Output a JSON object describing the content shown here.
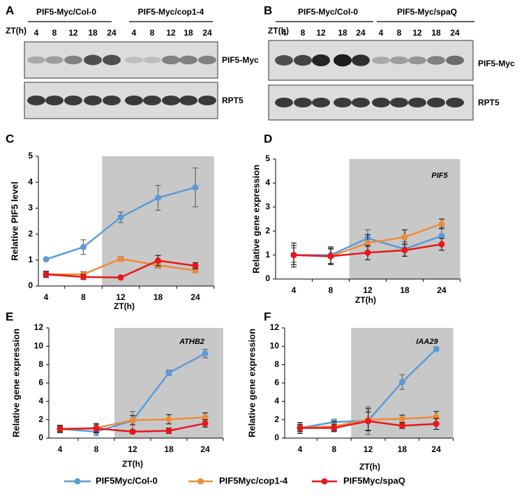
{
  "blots": [
    {
      "panel": "A",
      "groups": [
        "PIF5-Myc/Col-0",
        "PIF5-Myc/cop1-4"
      ],
      "zt_label": "ZT(h)",
      "lanes": [
        "4",
        "8",
        "12",
        "18",
        "24",
        "4",
        "8",
        "12",
        "18",
        "24"
      ],
      "rows": [
        "PIF5-Myc",
        "RPT5"
      ]
    },
    {
      "panel": "B",
      "groups": [
        "PIF5-Myc/Col-0",
        "PIF5-Myc/spaQ"
      ],
      "zt_label": "ZT(h)",
      "lanes": [
        "4",
        "8",
        "12",
        "18",
        "24",
        "4",
        "8",
        "12",
        "18",
        "24"
      ],
      "rows": [
        "PIF5-Myc",
        "RPT5"
      ]
    }
  ],
  "chart_data": [
    {
      "type": "line",
      "panel": "C",
      "xlabel": "ZT(h)",
      "ylabel": "Relative PIF5 level",
      "categories": [
        "4",
        "8",
        "12",
        "18",
        "24"
      ],
      "ylim": [
        0,
        5
      ],
      "yticks": [
        0,
        1,
        2,
        3,
        4,
        5
      ],
      "shaded_x": [
        1.5,
        4.5
      ],
      "series": [
        {
          "name": "PIF5Myc/Col-0",
          "color": "#5b9bd5",
          "values": [
            1.03,
            1.5,
            2.65,
            3.4,
            3.8
          ],
          "errors": [
            0.05,
            0.28,
            0.2,
            0.48,
            0.75
          ]
        },
        {
          "name": "PIF5Myc/cop1-4",
          "color": "#ed8b3a",
          "values": [
            0.45,
            0.45,
            1.05,
            0.8,
            0.6
          ],
          "errors": [
            0.1,
            0.1,
            0.08,
            0.1,
            0.08
          ]
        },
        {
          "name": "PIF5Myc/spaQ",
          "color": "#e8161b",
          "values": [
            0.45,
            0.35,
            0.33,
            0.98,
            0.78
          ],
          "errors": [
            0.12,
            0.1,
            0.05,
            0.2,
            0.12
          ]
        }
      ]
    },
    {
      "type": "line",
      "panel": "D",
      "xlabel": "ZT(h)",
      "ylabel": "Relative gene expression",
      "annotation": "PIF5",
      "categories": [
        "4",
        "8",
        "12",
        "18",
        "24"
      ],
      "ylim": [
        0,
        5
      ],
      "yticks": [
        0,
        1,
        2,
        3,
        4,
        5
      ],
      "shaded_x": [
        1.5,
        4.5
      ],
      "series": [
        {
          "name": "PIF5Myc/Col-0",
          "color": "#5b9bd5",
          "values": [
            1.0,
            1.0,
            1.7,
            1.25,
            1.8
          ],
          "errors": [
            0.3,
            0.35,
            0.35,
            0.3,
            0.35
          ]
        },
        {
          "name": "PIF5Myc/cop1-4",
          "color": "#ed8b3a",
          "values": [
            1.0,
            0.95,
            1.5,
            1.75,
            2.3
          ],
          "errors": [
            0.4,
            0.3,
            0.35,
            0.3,
            0.2
          ]
        },
        {
          "name": "PIF5Myc/spaQ",
          "color": "#e8161b",
          "values": [
            1.0,
            0.95,
            1.1,
            1.2,
            1.45
          ],
          "errors": [
            0.5,
            0.35,
            0.3,
            0.25,
            0.25
          ]
        }
      ]
    },
    {
      "type": "line",
      "panel": "E",
      "xlabel": "ZT(h)",
      "ylabel": "Relative gene expression",
      "annotation": "ATHB2",
      "categories": [
        "4",
        "8",
        "12",
        "18",
        "24"
      ],
      "ylim": [
        0,
        12
      ],
      "yticks": [
        0,
        2,
        4,
        6,
        8,
        10,
        12
      ],
      "shaded_x": [
        1.5,
        4.5
      ],
      "series": [
        {
          "name": "PIF5Myc/Col-0",
          "color": "#5b9bd5",
          "values": [
            1.0,
            0.7,
            1.9,
            7.1,
            9.2
          ],
          "errors": [
            0.3,
            0.4,
            1.0,
            0.3,
            0.45
          ]
        },
        {
          "name": "PIF5Myc/cop1-4",
          "color": "#ed8b3a",
          "values": [
            1.0,
            1.1,
            1.95,
            2.05,
            2.25
          ],
          "errors": [
            0.3,
            0.5,
            0.5,
            0.5,
            0.5
          ]
        },
        {
          "name": "PIF5Myc/spaQ",
          "color": "#e8161b",
          "values": [
            1.0,
            1.05,
            0.7,
            0.8,
            1.6
          ],
          "errors": [
            0.4,
            0.4,
            0.2,
            0.3,
            0.4
          ]
        }
      ]
    },
    {
      "type": "line",
      "panel": "F",
      "xlabel": "ZT(h)",
      "ylabel": "Relative  gene expression",
      "annotation": "IAA29",
      "categories": [
        "4",
        "8",
        "12",
        "18",
        "24"
      ],
      "ylim": [
        0,
        12
      ],
      "yticks": [
        0,
        2,
        4,
        6,
        8,
        10,
        12
      ],
      "shaded_x": [
        1.5,
        4.5
      ],
      "series": [
        {
          "name": "PIF5Myc/Col-0",
          "color": "#5b9bd5",
          "values": [
            1.1,
            1.75,
            1.9,
            6.1,
            9.7
          ],
          "errors": [
            0.3,
            0.3,
            1.5,
            0.8,
            0.2
          ]
        },
        {
          "name": "PIF5Myc/cop1-4",
          "color": "#ed8b3a",
          "values": [
            1.1,
            1.3,
            2.0,
            2.1,
            2.3
          ],
          "errors": [
            0.4,
            0.5,
            1.2,
            0.4,
            0.6
          ]
        },
        {
          "name": "PIF5Myc/spaQ",
          "color": "#e8161b",
          "values": [
            1.1,
            1.1,
            1.85,
            1.35,
            1.55
          ],
          "errors": [
            0.6,
            0.4,
            1.0,
            0.3,
            0.6
          ]
        }
      ]
    }
  ]
}
